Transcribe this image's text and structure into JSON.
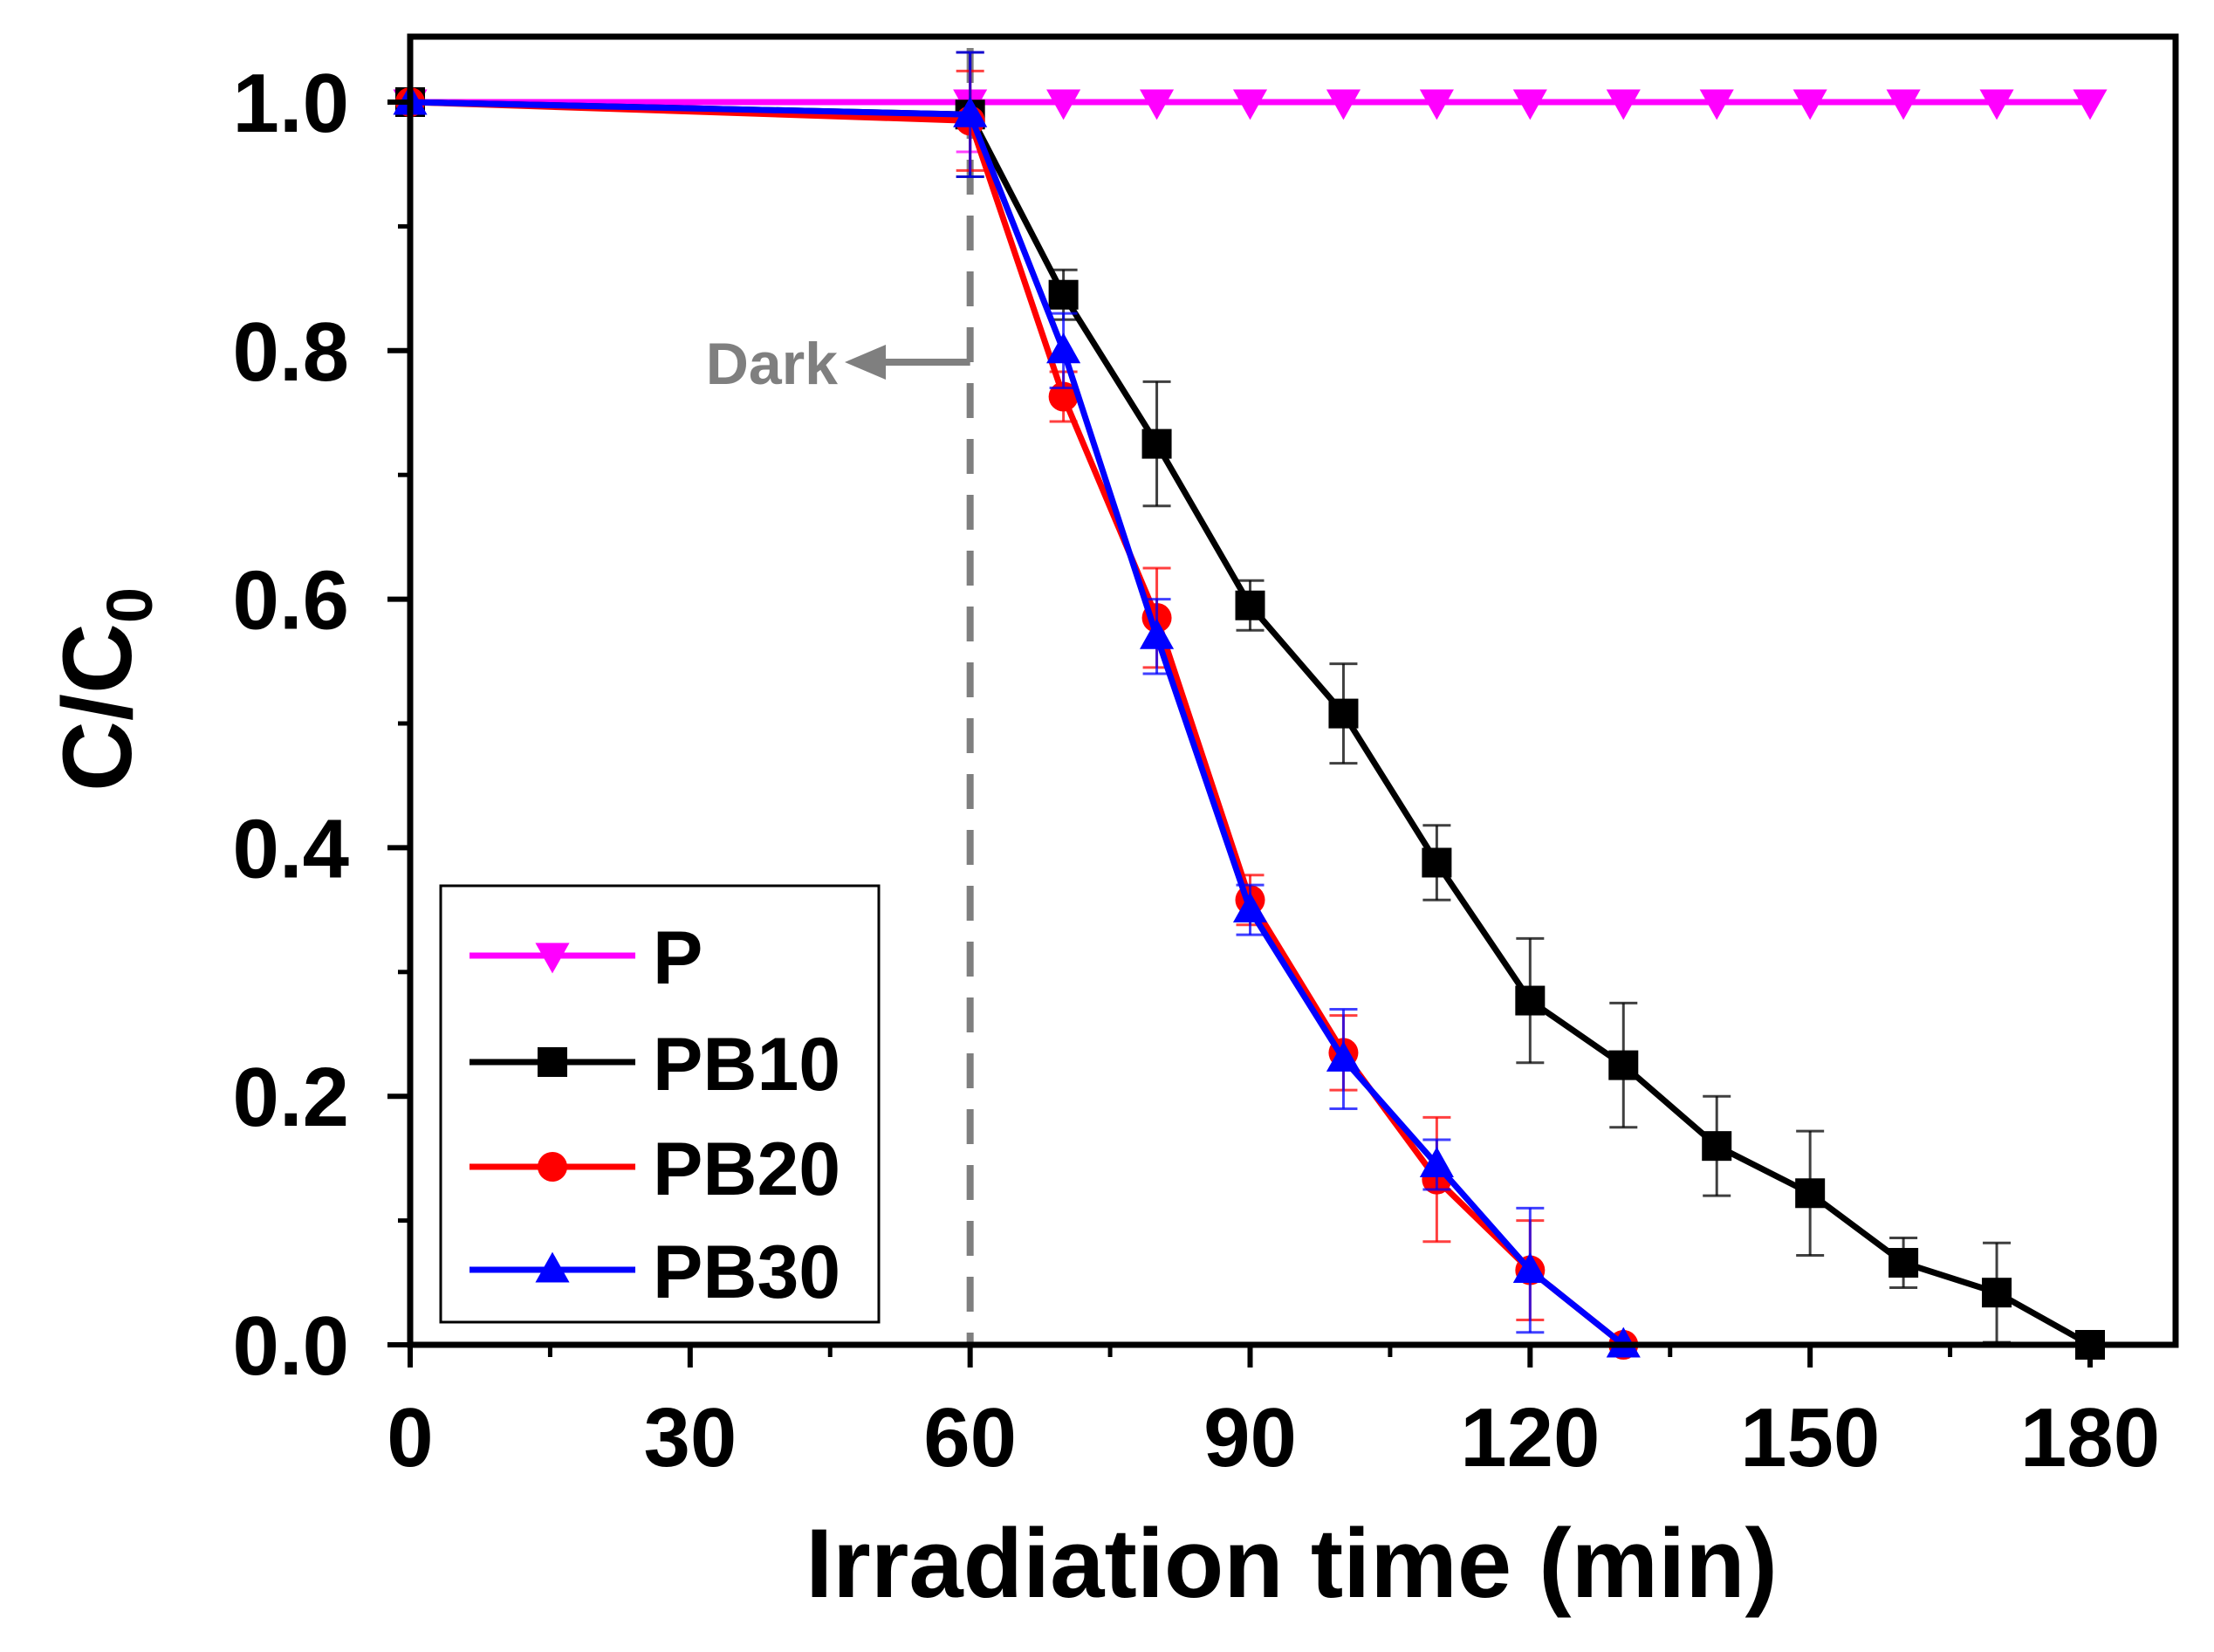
{
  "chart_data": {
    "type": "line",
    "xlabel": "Irradiation time (min)",
    "ylabel_main": "C/C",
    "ylabel_sub": "0",
    "xlim": [
      0,
      190
    ],
    "ylim": [
      0,
      1.05
    ],
    "x_ticks": [
      0,
      30,
      60,
      90,
      120,
      150,
      180
    ],
    "x_tick_labels": [
      "0",
      "30",
      "60",
      "90",
      "120",
      "150",
      "180"
    ],
    "y_ticks": [
      0.0,
      0.2,
      0.4,
      0.6,
      0.8,
      1.0
    ],
    "y_tick_labels": [
      "0.0",
      "0.2",
      "0.4",
      "0.6",
      "0.8",
      "1.0"
    ],
    "grid": false,
    "legend_position": "bottom-left",
    "annotation": {
      "text": "Dark",
      "x": 60,
      "arrow_direction": "left"
    },
    "series": [
      {
        "name": "P",
        "color": "#ff00ff",
        "marker": "triangle-down",
        "x": [
          0,
          60,
          70,
          80,
          90,
          100,
          110,
          120,
          130,
          140,
          150,
          160,
          170,
          180
        ],
        "y": [
          1.0,
          1.0,
          1.0,
          1.0,
          1.0,
          1.0,
          1.0,
          1.0,
          1.0,
          1.0,
          1.0,
          1.0,
          1.0,
          1.0
        ],
        "err": [
          0,
          0.04,
          0,
          0,
          0,
          0,
          0,
          0,
          0,
          0,
          0,
          0,
          0,
          0
        ]
      },
      {
        "name": "PB10",
        "color": "#000000",
        "marker": "square",
        "x": [
          0,
          60,
          70,
          80,
          90,
          100,
          110,
          120,
          130,
          140,
          150,
          160,
          170,
          180
        ],
        "y": [
          1.0,
          0.99,
          0.845,
          0.725,
          0.595,
          0.508,
          0.388,
          0.277,
          0.225,
          0.16,
          0.122,
          0.066,
          0.042,
          0.0
        ],
        "err": [
          0,
          0.05,
          0.02,
          0.05,
          0.02,
          0.04,
          0.03,
          0.05,
          0.05,
          0.04,
          0.05,
          0.02,
          0.04,
          0
        ]
      },
      {
        "name": "PB20",
        "color": "#ff0000",
        "marker": "circle",
        "x": [
          0,
          60,
          70,
          80,
          90,
          100,
          110,
          120,
          130
        ],
        "y": [
          1.0,
          0.985,
          0.763,
          0.585,
          0.358,
          0.235,
          0.133,
          0.06,
          0.0
        ],
        "err": [
          0,
          0.04,
          0.02,
          0.04,
          0.02,
          0.03,
          0.05,
          0.04,
          0
        ]
      },
      {
        "name": "PB30",
        "color": "#0000ff",
        "marker": "triangle-up",
        "x": [
          0,
          60,
          70,
          80,
          90,
          100,
          110,
          120,
          130
        ],
        "y": [
          1.0,
          0.99,
          0.8,
          0.57,
          0.35,
          0.23,
          0.145,
          0.06,
          0.0
        ],
        "err": [
          0,
          0.05,
          0.03,
          0.03,
          0.02,
          0.04,
          0.02,
          0.05,
          0
        ]
      }
    ]
  }
}
